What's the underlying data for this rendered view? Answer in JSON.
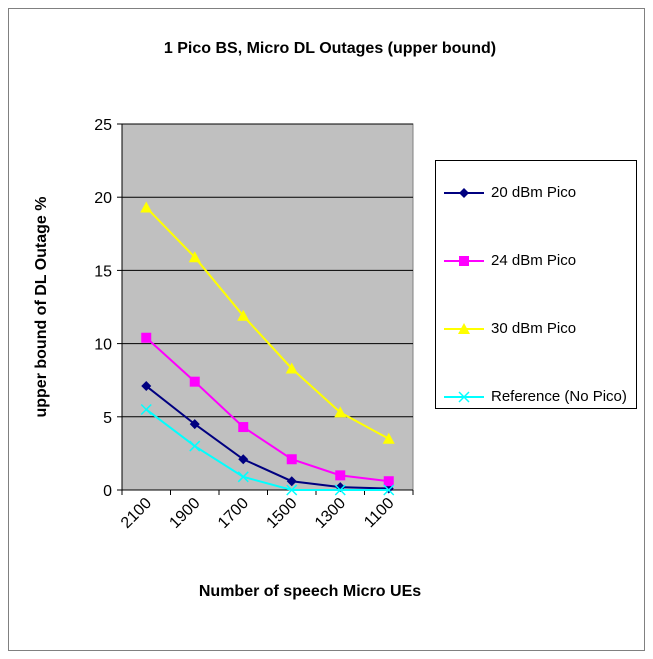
{
  "chart_data": {
    "type": "line",
    "title": "1 Pico BS, Micro DL Outages (upper bound)",
    "x_label": "Number of speech Micro UEs",
    "y_label": "upper bound of DL Outage %",
    "categories": [
      "2100",
      "1900",
      "1700",
      "1500",
      "1300",
      "1100"
    ],
    "ylim": [
      0,
      25
    ],
    "yticks": [
      0,
      5,
      10,
      15,
      20,
      25
    ],
    "grid": true,
    "plot_background": "#c0c0c0",
    "series": [
      {
        "name": "20 dBm Pico",
        "color": "#000080",
        "marker": "diamond",
        "values": [
          7.1,
          4.5,
          2.1,
          0.6,
          0.2,
          0.1
        ]
      },
      {
        "name": "24 dBm Pico",
        "color": "#ff00ff",
        "marker": "square",
        "values": [
          10.4,
          7.4,
          4.3,
          2.1,
          1.0,
          0.6
        ]
      },
      {
        "name": "30 dBm Pico",
        "color": "#ffff00",
        "marker": "triangle",
        "values": [
          19.3,
          15.9,
          11.9,
          8.3,
          5.3,
          3.5
        ]
      },
      {
        "name": "Reference (No Pico)",
        "color": "#00ffff",
        "marker": "x",
        "values": [
          5.5,
          3.0,
          0.9,
          0.0,
          0.0,
          0.0
        ]
      }
    ]
  }
}
